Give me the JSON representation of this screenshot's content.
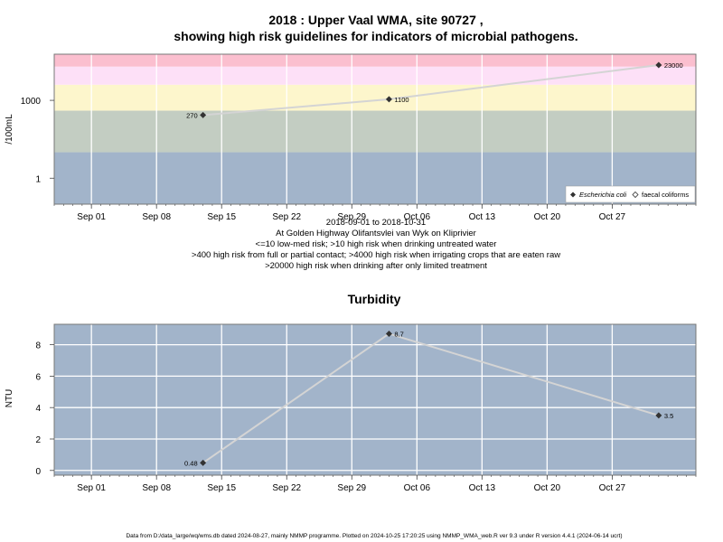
{
  "colors": {
    "panel_bg": "#a2b4ca",
    "band_green": "#c3cdc2",
    "band_yellow": "#fdf6cc",
    "band_pink": "#fde0f7",
    "band_red": "#fbbfcf",
    "grid": "#ffffff",
    "series_line": "#d4d4d4",
    "marker": "#333333"
  },
  "top_chart": {
    "title_line1": "2018 : Upper Vaal WMA, site 90727 ,",
    "title_line2": "showing high risk guidelines for indicators of microbial pathogens.",
    "ylabel": "/100mL",
    "caption": [
      "2018-09-01 to 2018-10-31",
      "At Golden Highway Olifantsvlei van Wyk on Kliprivier",
      "<=10 low-med risk; >10 high risk when drinking untreated water",
      ">400 high risk from full or partial contact; >4000 high risk when irrigating crops that are eaten raw",
      ">20000 high risk when drinking after only limited treatment"
    ],
    "legend": [
      {
        "name": "Escherichia coli",
        "symbol": "filled-diamond"
      },
      {
        "name": "faecal coliforms",
        "symbol": "open-diamond"
      }
    ]
  },
  "bottom_chart": {
    "title": "Turbidity",
    "ylabel": "NTU"
  },
  "footer": "Data from D:/data_large/wq/wms.db dated 2024-08-27, mainly NMMP programme. Plotted on 2024-10-25 17:20:25 using NMMP_WMA_web.R ver 9.3 under R version 4.4.1 (2024-06-14 ucrt)",
  "chart_data": [
    {
      "type": "line",
      "scale": "log10",
      "xlim": [
        "2018-08-28",
        "2018-11-05"
      ],
      "ylim": [
        0.1,
        60000
      ],
      "x_ticks": [
        "2018-09-01",
        "2018-09-08",
        "2018-09-15",
        "2018-09-22",
        "2018-09-29",
        "2018-10-06",
        "2018-10-13",
        "2018-10-20",
        "2018-10-27"
      ],
      "x_tick_labels": [
        "Sep 01",
        "Sep 08",
        "Sep 15",
        "Sep 22",
        "Sep 29",
        "Oct 06",
        "Oct 13",
        "Oct 20",
        "Oct 27"
      ],
      "y_ticks": [
        1,
        1000
      ],
      "y_tick_labels": [
        "1",
        "1000"
      ],
      "bands": [
        {
          "from": 0.1,
          "to": 10,
          "label": "low-med risk"
        },
        {
          "from": 10,
          "to": 400,
          "label": "high risk when drinking untreated water"
        },
        {
          "from": 400,
          "to": 4000,
          "label": "high risk from full or partial contact"
        },
        {
          "from": 4000,
          "to": 20000,
          "label": "high risk when irrigating crops eaten raw"
        },
        {
          "from": 20000,
          "to": 60000,
          "label": "high risk when drinking after only limited treatment"
        }
      ],
      "series": [
        {
          "name": "Escherichia coli",
          "x": [
            "2018-09-13",
            "2018-10-03",
            "2018-11-01"
          ],
          "values": [
            270,
            1100,
            23000
          ],
          "labels": [
            "270",
            "1100",
            "23000"
          ]
        }
      ]
    },
    {
      "type": "line",
      "xlim": [
        "2018-08-28",
        "2018-11-05"
      ],
      "ylim": [
        -0.3,
        9.3
      ],
      "x_ticks": [
        "2018-09-01",
        "2018-09-08",
        "2018-09-15",
        "2018-09-22",
        "2018-09-29",
        "2018-10-06",
        "2018-10-13",
        "2018-10-20",
        "2018-10-27"
      ],
      "x_tick_labels": [
        "Sep 01",
        "Sep 08",
        "Sep 15",
        "Sep 22",
        "Sep 29",
        "Oct 06",
        "Oct 13",
        "Oct 20",
        "Oct 27"
      ],
      "y_ticks": [
        0,
        2,
        4,
        6,
        8
      ],
      "y_tick_labels": [
        "0",
        "2",
        "4",
        "6",
        "8"
      ],
      "series": [
        {
          "x": [
            "2018-09-13",
            "2018-10-03",
            "2018-11-01"
          ],
          "values": [
            0.48,
            8.7,
            3.5
          ],
          "labels": [
            "0.48",
            "8.7",
            "3.5"
          ]
        }
      ]
    }
  ]
}
